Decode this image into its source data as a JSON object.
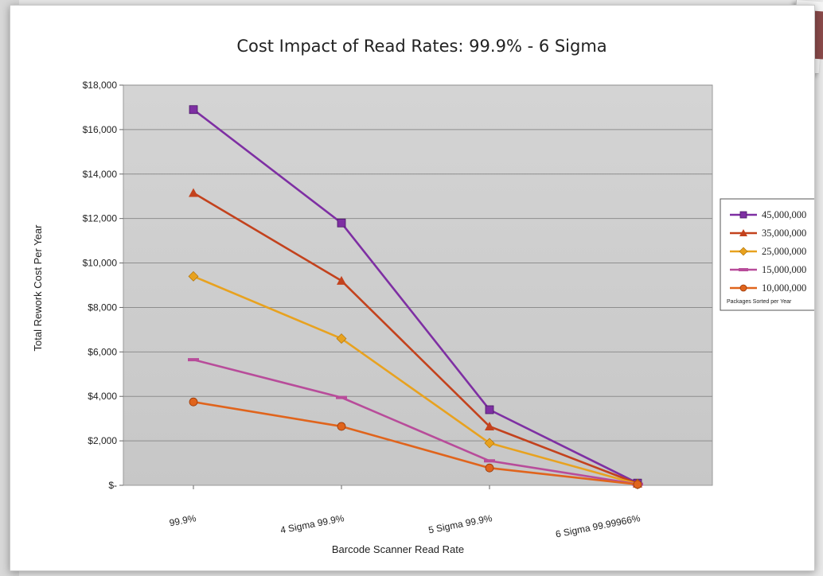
{
  "chart_data": {
    "type": "line",
    "title": "Cost Impact of Read Rates: 99.9% - 6 Sigma",
    "xlabel": "Barcode Scanner Read Rate",
    "ylabel": "Total Rework Cost Per Year",
    "categories": [
      "99.9%",
      "4 Sigma 99.9%",
      "5 Sigma 99.9%",
      "6 Sigma 99.99966%"
    ],
    "ylim": [
      0,
      18000
    ],
    "yticks": [
      {
        "value": 0,
        "label": "$-"
      },
      {
        "value": 2000,
        "label": "$2,000"
      },
      {
        "value": 4000,
        "label": "$4,000"
      },
      {
        "value": 6000,
        "label": "$6,000"
      },
      {
        "value": 8000,
        "label": "$8,000"
      },
      {
        "value": 10000,
        "label": "$10,000"
      },
      {
        "value": 12000,
        "label": "$12,000"
      },
      {
        "value": 14000,
        "label": "$14,000"
      },
      {
        "value": 16000,
        "label": "$16,000"
      },
      {
        "value": 18000,
        "label": "$18,000"
      }
    ],
    "grid": true,
    "legend_position": "right",
    "legend_title": "Packages Sorted per Year",
    "series": [
      {
        "name": "45,000,000",
        "values": [
          16900,
          11800,
          3400,
          100
        ],
        "color": "#7e2fa3",
        "marker": "square"
      },
      {
        "name": "35,000,000",
        "values": [
          13150,
          9200,
          2650,
          80
        ],
        "color": "#c3421d",
        "marker": "triangle"
      },
      {
        "name": "25,000,000",
        "values": [
          9400,
          6600,
          1900,
          60
        ],
        "color": "#e8a21f",
        "marker": "diamond"
      },
      {
        "name": "15,000,000",
        "values": [
          5650,
          3950,
          1100,
          50
        ],
        "color": "#b84c9a",
        "marker": "dash"
      },
      {
        "name": "10,000,000",
        "values": [
          3750,
          2650,
          780,
          40
        ],
        "color": "#e0641c",
        "marker": "circle"
      }
    ]
  }
}
